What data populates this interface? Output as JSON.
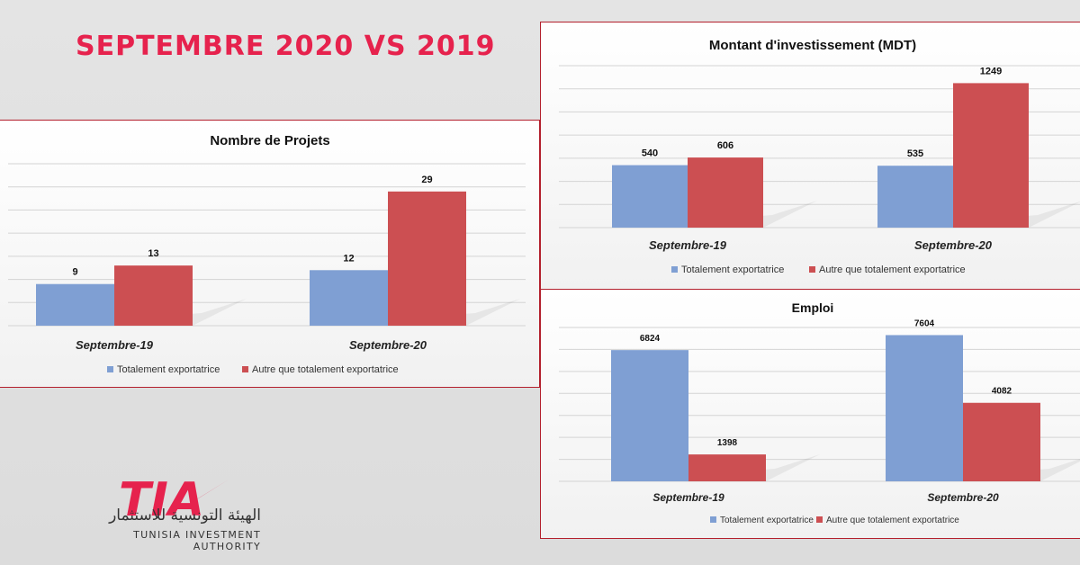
{
  "headline": "SEPTEMBRE 2020 VS 2019",
  "colors": {
    "series_a": "#7f9fd3",
    "series_b": "#cc4f52",
    "accent": "#e6224d"
  },
  "logo": {
    "mark": "TIA",
    "arabic": "الهيئة التونسية للاستثمار",
    "english": "TUNISIA INVESTMENT AUTHORITY"
  },
  "chart_data": [
    {
      "id": "projets",
      "type": "bar",
      "title": "Nombre de Projets",
      "categories": [
        "Septembre-19",
        "Septembre-20"
      ],
      "series": [
        {
          "name": "Totalement exportatrice",
          "values": [
            9,
            12
          ]
        },
        {
          "name": "Autre que totalement exportatrice",
          "values": [
            13,
            29
          ]
        }
      ],
      "ylim": [
        0,
        35
      ],
      "grid": true,
      "legend": "bottom"
    },
    {
      "id": "montant",
      "type": "bar",
      "title": "Montant d'investissement (MDT)",
      "categories": [
        "Septembre-19",
        "Septembre-20"
      ],
      "series": [
        {
          "name": "Totalement exportatrice",
          "values": [
            540,
            535
          ]
        },
        {
          "name": "Autre que totalement exportatrice",
          "values": [
            606,
            1249
          ]
        }
      ],
      "ylim": [
        0,
        1400
      ],
      "grid": true,
      "legend": "bottom"
    },
    {
      "id": "emploi",
      "type": "bar",
      "title": "Emploi",
      "categories": [
        "Septembre-19",
        "Septembre-20"
      ],
      "series": [
        {
          "name": "Totalement exportatrice",
          "values": [
            6824,
            7604
          ]
        },
        {
          "name": "Autre que totalement exportatrice",
          "values": [
            1398,
            4082
          ]
        }
      ],
      "ylim": [
        0,
        8000
      ],
      "grid": true,
      "legend": "bottom"
    }
  ]
}
